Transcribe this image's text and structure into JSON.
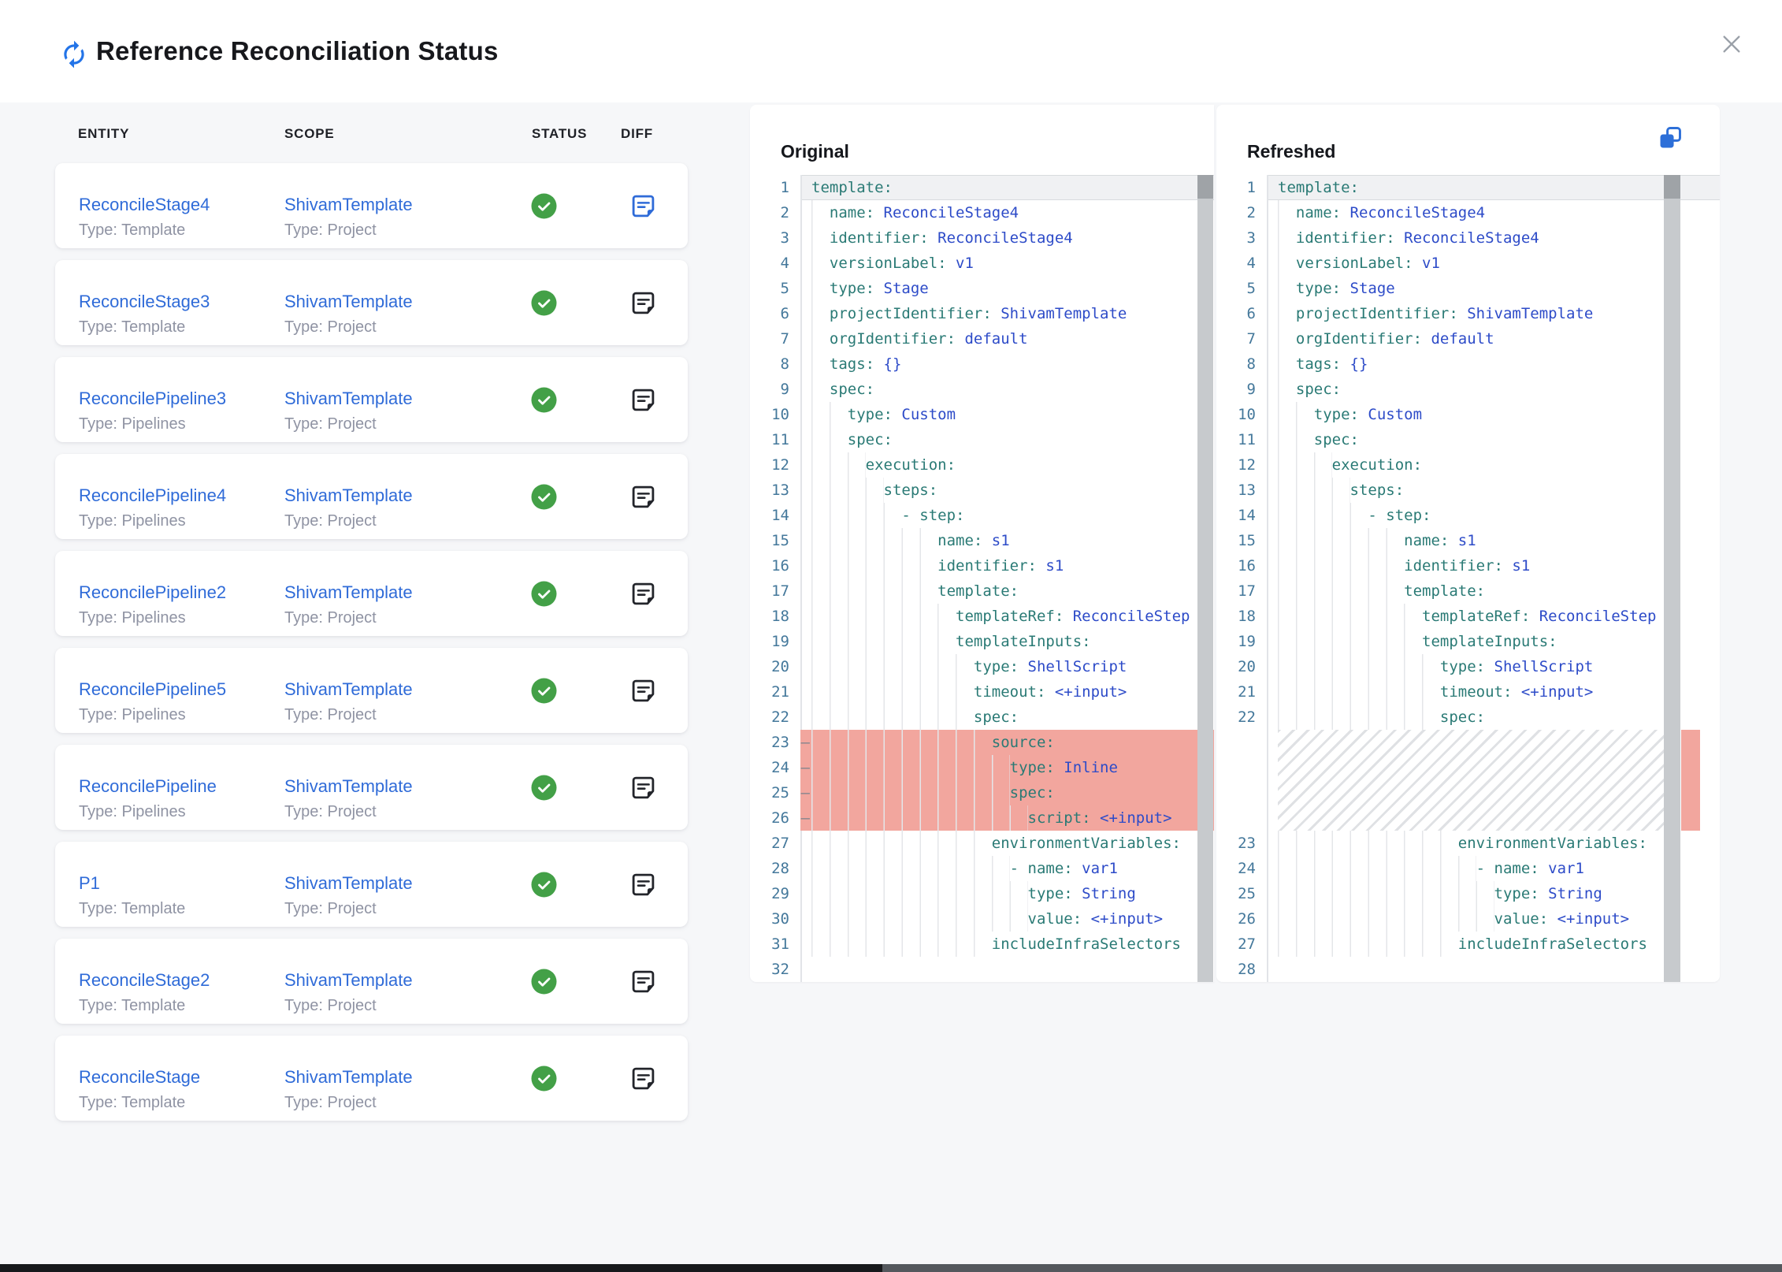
{
  "header": {
    "title": "Reference Reconciliation Status"
  },
  "colors": {
    "accent_blue": "#2374E8",
    "link_blue": "#2F6BD8",
    "success_green": "#43A047",
    "removed_red": "#F2A69E",
    "code_key_teal": "#2A7A75",
    "code_value_blue": "#2D4BC8",
    "line_number_blue": "#44789B",
    "page_bg": "#F6F7F9"
  },
  "table": {
    "columns": [
      "ENTITY",
      "SCOPE",
      "STATUS",
      "DIFF"
    ],
    "rows": [
      {
        "entity": "ReconcileStage4",
        "entity_type": "Type: Template",
        "scope": "ShivamTemplate",
        "scope_type": "Type: Project",
        "status": "success",
        "diff_highlighted": true
      },
      {
        "entity": "ReconcileStage3",
        "entity_type": "Type: Template",
        "scope": "ShivamTemplate",
        "scope_type": "Type: Project",
        "status": "success",
        "diff_highlighted": false
      },
      {
        "entity": "ReconcilePipeline3",
        "entity_type": "Type: Pipelines",
        "scope": "ShivamTemplate",
        "scope_type": "Type: Project",
        "status": "success",
        "diff_highlighted": false
      },
      {
        "entity": "ReconcilePipeline4",
        "entity_type": "Type: Pipelines",
        "scope": "ShivamTemplate",
        "scope_type": "Type: Project",
        "status": "success",
        "diff_highlighted": false
      },
      {
        "entity": "ReconcilePipeline2",
        "entity_type": "Type: Pipelines",
        "scope": "ShivamTemplate",
        "scope_type": "Type: Project",
        "status": "success",
        "diff_highlighted": false
      },
      {
        "entity": "ReconcilePipeline5",
        "entity_type": "Type: Pipelines",
        "scope": "ShivamTemplate",
        "scope_type": "Type: Project",
        "status": "success",
        "diff_highlighted": false
      },
      {
        "entity": "ReconcilePipeline",
        "entity_type": "Type: Pipelines",
        "scope": "ShivamTemplate",
        "scope_type": "Type: Project",
        "status": "success",
        "diff_highlighted": false
      },
      {
        "entity": "P1",
        "entity_type": "Type: Template",
        "scope": "ShivamTemplate",
        "scope_type": "Type: Project",
        "status": "success",
        "diff_highlighted": false
      },
      {
        "entity": "ReconcileStage2",
        "entity_type": "Type: Template",
        "scope": "ShivamTemplate",
        "scope_type": "Type: Project",
        "status": "success",
        "diff_highlighted": false
      },
      {
        "entity": "ReconcileStage",
        "entity_type": "Type: Template",
        "scope": "ShivamTemplate",
        "scope_type": "Type: Project",
        "status": "success",
        "diff_highlighted": false
      }
    ]
  },
  "panels": {
    "original": {
      "title": "Original"
    },
    "refreshed": {
      "title": "Refreshed"
    }
  },
  "code": {
    "original": [
      {
        "n": 1,
        "i": 0,
        "k": "template:"
      },
      {
        "n": 2,
        "i": 2,
        "k": "name:",
        "v": " ReconcileStage4"
      },
      {
        "n": 3,
        "i": 2,
        "k": "identifier:",
        "v": " ReconcileStage4"
      },
      {
        "n": 4,
        "i": 2,
        "k": "versionLabel:",
        "v": " v1"
      },
      {
        "n": 5,
        "i": 2,
        "k": "type:",
        "v": " Stage"
      },
      {
        "n": 6,
        "i": 2,
        "k": "projectIdentifier:",
        "v": " ShivamTemplate"
      },
      {
        "n": 7,
        "i": 2,
        "k": "orgIdentifier:",
        "v": " default"
      },
      {
        "n": 8,
        "i": 2,
        "k": "tags:",
        "v": " {}"
      },
      {
        "n": 9,
        "i": 2,
        "k": "spec:"
      },
      {
        "n": 10,
        "i": 4,
        "k": "type:",
        "v": " Custom"
      },
      {
        "n": 11,
        "i": 4,
        "k": "spec:"
      },
      {
        "n": 12,
        "i": 6,
        "k": "execution:"
      },
      {
        "n": 13,
        "i": 8,
        "k": "steps:"
      },
      {
        "n": 14,
        "i": 10,
        "k": "- step:"
      },
      {
        "n": 15,
        "i": 14,
        "k": "name:",
        "v": " s1"
      },
      {
        "n": 16,
        "i": 14,
        "k": "identifier:",
        "v": " s1"
      },
      {
        "n": 17,
        "i": 14,
        "k": "template:"
      },
      {
        "n": 18,
        "i": 16,
        "k": "templateRef:",
        "v": " ReconcileStep"
      },
      {
        "n": 19,
        "i": 16,
        "k": "templateInputs:"
      },
      {
        "n": 20,
        "i": 18,
        "k": "type:",
        "v": " ShellScript"
      },
      {
        "n": 21,
        "i": 18,
        "k": "timeout:",
        "v": " <+input>"
      },
      {
        "n": 22,
        "i": 18,
        "k": "spec:"
      },
      {
        "n": 23,
        "i": 20,
        "k": "source:",
        "removed": true
      },
      {
        "n": 24,
        "i": 22,
        "k": "type:",
        "v": " Inline",
        "removed": true
      },
      {
        "n": 25,
        "i": 22,
        "k": "spec:",
        "removed": true
      },
      {
        "n": 26,
        "i": 24,
        "k": "script:",
        "v": " <+input>",
        "removed": true
      },
      {
        "n": 27,
        "i": 20,
        "k": "environmentVariables:"
      },
      {
        "n": 28,
        "i": 22,
        "k": "- name:",
        "v": " var1"
      },
      {
        "n": 29,
        "i": 24,
        "k": "type:",
        "v": " String"
      },
      {
        "n": 30,
        "i": 24,
        "k": "value:",
        "v": " <+input>"
      },
      {
        "n": 31,
        "i": 20,
        "k": "includeInfraSelectors"
      },
      {
        "n": 32,
        "i": 0,
        "k": ""
      }
    ],
    "refreshed": [
      {
        "n": 1,
        "i": 0,
        "k": "template:"
      },
      {
        "n": 2,
        "i": 2,
        "k": "name:",
        "v": " ReconcileStage4"
      },
      {
        "n": 3,
        "i": 2,
        "k": "identifier:",
        "v": " ReconcileStage4"
      },
      {
        "n": 4,
        "i": 2,
        "k": "versionLabel:",
        "v": " v1"
      },
      {
        "n": 5,
        "i": 2,
        "k": "type:",
        "v": " Stage"
      },
      {
        "n": 6,
        "i": 2,
        "k": "projectIdentifier:",
        "v": " ShivamTemplate"
      },
      {
        "n": 7,
        "i": 2,
        "k": "orgIdentifier:",
        "v": " default"
      },
      {
        "n": 8,
        "i": 2,
        "k": "tags:",
        "v": " {}"
      },
      {
        "n": 9,
        "i": 2,
        "k": "spec:"
      },
      {
        "n": 10,
        "i": 4,
        "k": "type:",
        "v": " Custom"
      },
      {
        "n": 11,
        "i": 4,
        "k": "spec:"
      },
      {
        "n": 12,
        "i": 6,
        "k": "execution:"
      },
      {
        "n": 13,
        "i": 8,
        "k": "steps:"
      },
      {
        "n": 14,
        "i": 10,
        "k": "- step:"
      },
      {
        "n": 15,
        "i": 14,
        "k": "name:",
        "v": " s1"
      },
      {
        "n": 16,
        "i": 14,
        "k": "identifier:",
        "v": " s1"
      },
      {
        "n": 17,
        "i": 14,
        "k": "template:"
      },
      {
        "n": 18,
        "i": 16,
        "k": "templateRef:",
        "v": " ReconcileStep"
      },
      {
        "n": 19,
        "i": 16,
        "k": "templateInputs:"
      },
      {
        "n": 20,
        "i": 18,
        "k": "type:",
        "v": " ShellScript"
      },
      {
        "n": 21,
        "i": 18,
        "k": "timeout:",
        "v": " <+input>"
      },
      {
        "n": 22,
        "i": 18,
        "k": "spec:"
      },
      {
        "hatch": true,
        "rows": 4
      },
      {
        "n": 23,
        "i": 20,
        "k": "environmentVariables:"
      },
      {
        "n": 24,
        "i": 22,
        "k": "- name:",
        "v": " var1"
      },
      {
        "n": 25,
        "i": 24,
        "k": "type:",
        "v": " String"
      },
      {
        "n": 26,
        "i": 24,
        "k": "value:",
        "v": " <+input>"
      },
      {
        "n": 27,
        "i": 20,
        "k": "includeInfraSelectors"
      },
      {
        "n": 28,
        "i": 0,
        "k": ""
      }
    ]
  }
}
